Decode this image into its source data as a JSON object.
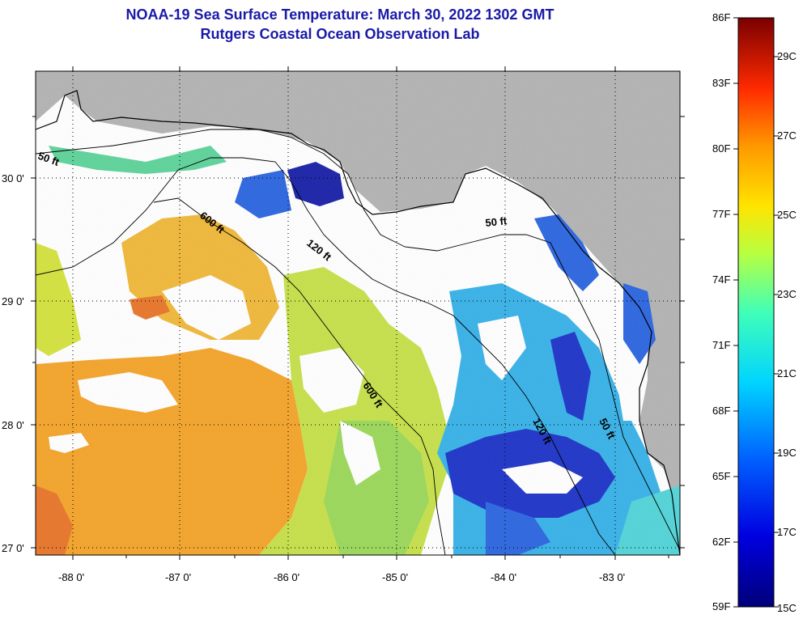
{
  "title": {
    "line1": "NOAA-19 Sea Surface Temperature:  March 30, 2022 1302 GMT",
    "line2": "Rutgers Coastal Ocean Observation Lab"
  },
  "map": {
    "lon_labels": [
      "-88 0'",
      "-87 0'",
      "-86 0'",
      "-85 0'",
      "-84 0'",
      "-83 0'"
    ],
    "lat_labels": [
      "30 0'",
      "29 0'",
      "28 0'",
      "27 0'"
    ],
    "contours": [
      "50 ft",
      "600 ft",
      "120 ft",
      "50 ft",
      "600 ft",
      "120 ft",
      "50 ft"
    ],
    "colors": {
      "land": "#b3b3b3",
      "cloud": "#ffffff",
      "warm": "#f4a52a",
      "mid": "#b8e04a",
      "cool": "#2e9ae6",
      "cold": "#1a2bc8"
    }
  },
  "colorbar": {
    "fahrenheit": [
      "86F",
      "83F",
      "80F",
      "77F",
      "74F",
      "71F",
      "68F",
      "65F",
      "62F",
      "59F"
    ],
    "celsius": [
      "29C",
      "27C",
      "25C",
      "23C",
      "21C",
      "19C",
      "17C",
      "15C"
    ]
  }
}
